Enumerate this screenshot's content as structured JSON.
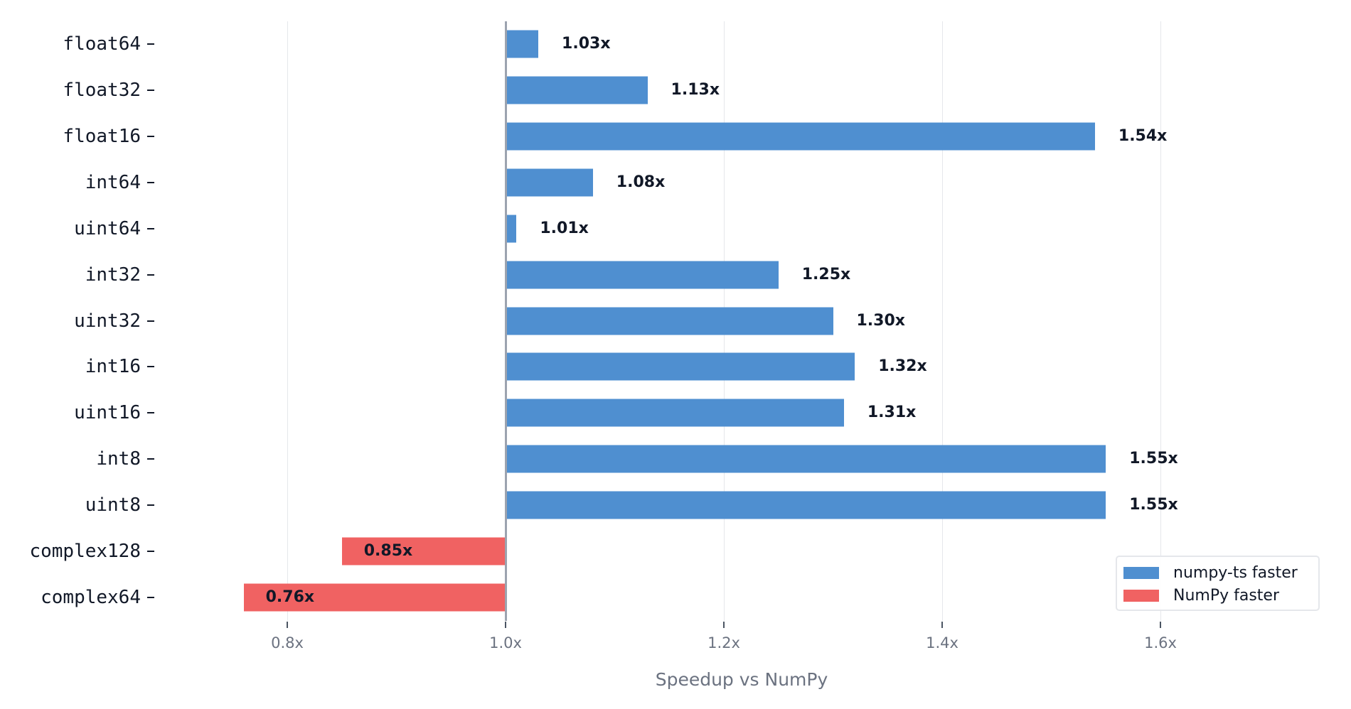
{
  "chart_data": {
    "type": "bar",
    "orientation": "horizontal",
    "title": "",
    "xlabel": "Speedup vs NumPy",
    "ylabel": "",
    "xlim": [
      0.68,
      1.75
    ],
    "reference_line": 1.0,
    "xticks": [
      0.8,
      1.0,
      1.2,
      1.4,
      1.6
    ],
    "xtick_labels": [
      "0.8x",
      "1.0x",
      "1.2x",
      "1.4x",
      "1.6x"
    ],
    "grid": "vertical",
    "legend_position": "lower right",
    "categories": [
      "float64",
      "float32",
      "float16",
      "int64",
      "uint64",
      "int32",
      "uint32",
      "int16",
      "uint16",
      "int8",
      "uint8",
      "complex128",
      "complex64"
    ],
    "values": [
      1.03,
      1.13,
      1.54,
      1.08,
      1.01,
      1.25,
      1.3,
      1.32,
      1.31,
      1.55,
      1.55,
      0.85,
      0.76
    ],
    "value_labels": [
      "1.03x",
      "1.13x",
      "1.54x",
      "1.08x",
      "1.01x",
      "1.25x",
      "1.30x",
      "1.32x",
      "1.31x",
      "1.55x",
      "1.55x",
      "0.85x",
      "0.76x"
    ],
    "series": [
      {
        "name": "numpy-ts faster",
        "color": "#4f8fd0"
      },
      {
        "name": "NumPy faster",
        "color": "#f06262"
      }
    ]
  },
  "legend": {
    "items": [
      {
        "label": "numpy-ts faster",
        "color": "#4f8fd0"
      },
      {
        "label": "NumPy faster",
        "color": "#f06262"
      }
    ]
  },
  "axis": {
    "x_title": "Speedup vs NumPy"
  },
  "colors": {
    "faster": "#4f8fd0",
    "slower": "#f06262",
    "grid": "#e5e7eb",
    "reference": "#9ca3af"
  }
}
